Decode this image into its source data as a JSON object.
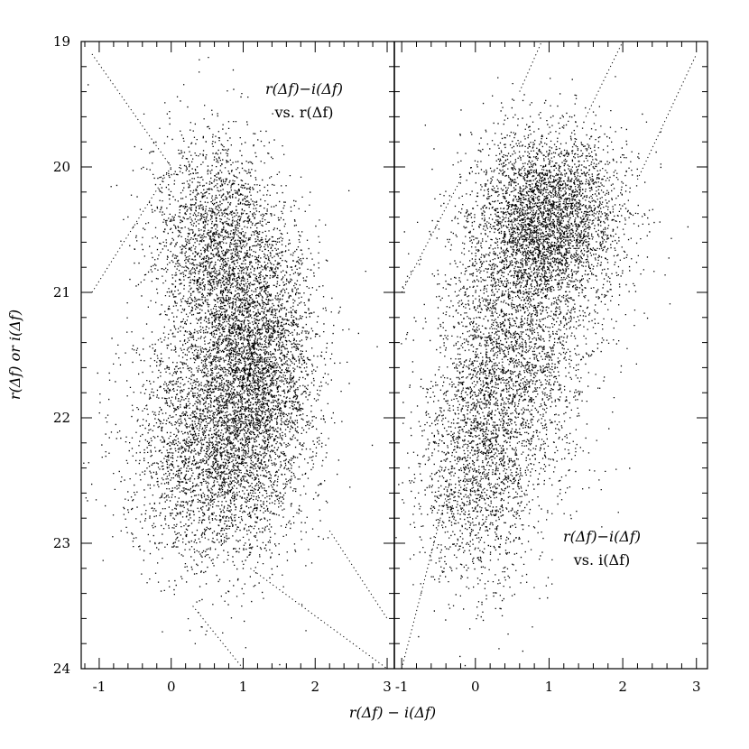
{
  "figure": {
    "xlabel": "r(Δf) − i(Δf)",
    "ylabel": "r(Δf) or i(Δf)"
  },
  "chart_data": [
    {
      "type": "scatter",
      "panel": "left",
      "annotation": [
        "r(Δf)−i(Δf)",
        "vs. r(Δf)"
      ],
      "xlim": [
        -1.25,
        3.1
      ],
      "ylim": [
        24,
        19
      ],
      "x_ticks": [
        "-1",
        "0",
        "1",
        "2",
        "3"
      ],
      "y_ticks": [
        "19",
        "20",
        "21",
        "22",
        "23",
        "24"
      ],
      "density": {
        "description": "star count concentrations",
        "clusters": [
          {
            "x_center": 0.6,
            "y_center": 20.6,
            "x_spread": 0.45,
            "y_spread": 0.45,
            "weight": 0.25
          },
          {
            "x_center": 1.2,
            "y_center": 21.5,
            "x_spread": 0.4,
            "y_spread": 0.5,
            "weight": 0.35
          },
          {
            "x_center": 0.6,
            "y_center": 22.2,
            "x_spread": 0.6,
            "y_spread": 0.5,
            "weight": 0.4
          }
        ],
        "n_points": 9000
      },
      "dotted_guides": [
        {
          "from": [
            -1.1,
            19.1
          ],
          "to": [
            0.0,
            20.0
          ]
        },
        {
          "from": [
            -1.1,
            21.0
          ],
          "to": [
            0.0,
            20.0
          ]
        },
        {
          "from": [
            1.1,
            23.2
          ],
          "to": [
            3.0,
            24.0
          ]
        },
        {
          "from": [
            0.3,
            23.5
          ],
          "to": [
            1.0,
            24.0
          ]
        },
        {
          "from": [
            2.2,
            22.9
          ],
          "to": [
            3.0,
            23.6
          ]
        }
      ]
    },
    {
      "type": "scatter",
      "panel": "right",
      "annotation": [
        "r(Δf)−i(Δf)",
        "vs. i(Δf)"
      ],
      "xlim": [
        -1.1,
        3.15
      ],
      "ylim": [
        24,
        19
      ],
      "x_ticks": [
        "-1",
        "0",
        "1",
        "2",
        "3"
      ],
      "density": {
        "description": "star count concentrations",
        "clusters": [
          {
            "x_center": 1.0,
            "y_center": 20.4,
            "x_spread": 0.5,
            "y_spread": 0.35,
            "weight": 0.45
          },
          {
            "x_center": 0.5,
            "y_center": 21.4,
            "x_spread": 0.5,
            "y_spread": 0.6,
            "weight": 0.35
          },
          {
            "x_center": 0.0,
            "y_center": 22.4,
            "x_spread": 0.4,
            "y_spread": 0.5,
            "weight": 0.2
          }
        ],
        "n_points": 8000
      },
      "dotted_guides": [
        {
          "from": [
            2.2,
            20.1
          ],
          "to": [
            3.0,
            19.1
          ]
        },
        {
          "from": [
            1.5,
            19.6
          ],
          "to": [
            2.0,
            19.0
          ]
        },
        {
          "from": [
            0.6,
            19.4
          ],
          "to": [
            0.9,
            19.0
          ]
        },
        {
          "from": [
            -1.0,
            21.0
          ],
          "to": [
            -0.2,
            20.1
          ]
        },
        {
          "from": [
            -1.0,
            24.0
          ],
          "to": [
            -0.3,
            22.4
          ]
        }
      ]
    }
  ]
}
